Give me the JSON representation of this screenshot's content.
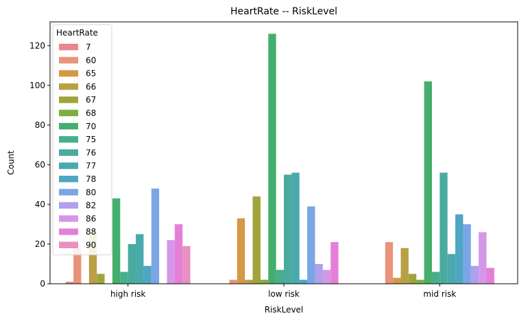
{
  "chart_data": {
    "type": "bar",
    "title": "HeartRate -- RiskLevel",
    "xlabel": "RiskLevel",
    "ylabel": "Count",
    "categories": [
      "high risk",
      "low risk",
      "mid risk"
    ],
    "ylim": [
      0,
      132
    ],
    "yticks": [
      0,
      20,
      40,
      60,
      80,
      100,
      120
    ],
    "legend": {
      "title": "HeartRate",
      "placement": "upper-left"
    },
    "grid": false,
    "series": [
      {
        "name": "7",
        "color": "#e8878f",
        "values": [
          1,
          0,
          0
        ]
      },
      {
        "name": "60",
        "color": "#e9947a",
        "values": [
          18,
          2,
          21
        ]
      },
      {
        "name": "65",
        "color": "#d59845",
        "values": [
          0,
          33,
          3
        ]
      },
      {
        "name": "66",
        "color": "#b9a044",
        "values": [
          26,
          2,
          18
        ]
      },
      {
        "name": "67",
        "color": "#a0a33a",
        "values": [
          5,
          44,
          5
        ]
      },
      {
        "name": "68",
        "color": "#7fad41",
        "values": [
          0,
          2,
          2
        ]
      },
      {
        "name": "70",
        "color": "#44ae6c",
        "values": [
          43,
          126,
          102
        ]
      },
      {
        "name": "75",
        "color": "#47ae8c",
        "values": [
          6,
          7,
          6
        ]
      },
      {
        "name": "76",
        "color": "#48ab9e",
        "values": [
          20,
          55,
          56
        ]
      },
      {
        "name": "77",
        "color": "#4aa9ad",
        "values": [
          25,
          56,
          15
        ]
      },
      {
        "name": "78",
        "color": "#4fa6c2",
        "values": [
          9,
          2,
          35
        ]
      },
      {
        "name": "80",
        "color": "#7ba6e5",
        "values": [
          48,
          39,
          30
        ]
      },
      {
        "name": "82",
        "color": "#b09fea",
        "values": [
          0,
          10,
          9
        ]
      },
      {
        "name": "86",
        "color": "#d497e6",
        "values": [
          22,
          7,
          26
        ]
      },
      {
        "name": "88",
        "color": "#e47fd8",
        "values": [
          30,
          21,
          8
        ]
      },
      {
        "name": "90",
        "color": "#e890bf",
        "values": [
          19,
          0,
          0
        ]
      }
    ]
  }
}
